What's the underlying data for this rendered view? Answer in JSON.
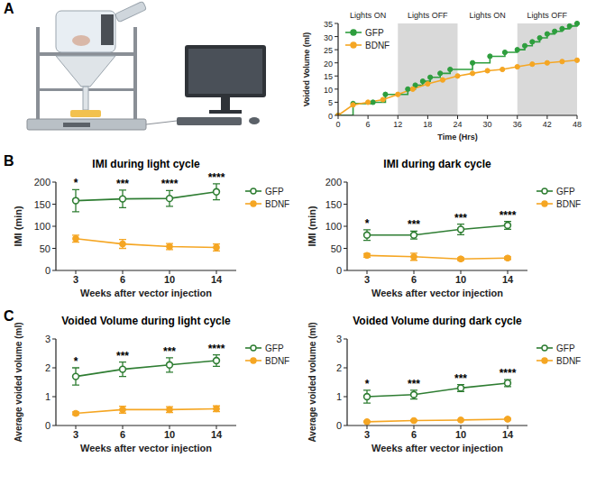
{
  "panel_labels": [
    "A",
    "B",
    "C"
  ],
  "chart_data": [
    {
      "type": "line",
      "x_label": "Time (Hrs)",
      "y_label": "Voided Volume (ml)",
      "xlim": [
        0,
        48
      ],
      "xticks": [
        0,
        6,
        12,
        18,
        24,
        30,
        36,
        42,
        48
      ],
      "ylim": [
        0,
        35
      ],
      "yticks": [
        0,
        5,
        10,
        15,
        20,
        25,
        30,
        35
      ],
      "grid": false,
      "legend": "upper left",
      "shaded": [
        [
          12,
          24
        ],
        [
          36,
          48
        ]
      ],
      "annotations": [
        {
          "text": "Lights ON",
          "x0": 0,
          "x1": 12
        },
        {
          "text": "Lights OFF",
          "x0": 12,
          "x1": 24
        },
        {
          "text": "Lights ON",
          "x0": 24,
          "x1": 36
        },
        {
          "text": "Lights OFF",
          "x0": 36,
          "x1": 48
        }
      ],
      "series": [
        {
          "name": "GFP",
          "color": "#2e9e3e",
          "line_style": "step",
          "marker": "circle",
          "x": [
            0,
            3,
            7,
            9.5,
            14,
            15.5,
            17,
            18.5,
            20.5,
            22.5,
            27,
            30.5,
            33.5,
            36,
            37.5,
            39,
            40.5,
            42,
            43.5,
            45,
            46.5,
            48
          ],
          "values": [
            0,
            4.5,
            5,
            8,
            10,
            11.5,
            13,
            14.5,
            16,
            17.5,
            20,
            22.5,
            24,
            25,
            26.5,
            28,
            29.5,
            31,
            32,
            33,
            34,
            35
          ]
        },
        {
          "name": "BDNF",
          "color": "#f5a623",
          "line_style": "solid",
          "marker": "circle",
          "x": [
            0,
            3,
            6,
            9,
            12,
            15,
            18,
            21,
            24,
            27,
            30,
            33,
            36,
            39,
            42,
            45,
            48
          ],
          "values": [
            0,
            4,
            5,
            6,
            8,
            10,
            12,
            13.5,
            15,
            16,
            17,
            17.5,
            18.5,
            19.5,
            20,
            20.5,
            21
          ]
        }
      ]
    },
    {
      "type": "line",
      "title": "IMI during light cycle",
      "x_label": "Weeks after vector injection",
      "y_label": "IMI (min)",
      "categories": [
        "3",
        "6",
        "10",
        "14"
      ],
      "ylim": [
        0,
        200
      ],
      "yticks": [
        0,
        50,
        100,
        150,
        200
      ],
      "grid": false,
      "legend": "right",
      "annotations": [
        "*",
        "***",
        "****",
        "****"
      ],
      "series": [
        {
          "name": "GFP",
          "color": "#2e7d32",
          "marker": "open-circle",
          "line_style": "solid",
          "values": [
            158,
            162,
            163,
            178
          ],
          "errors": [
            25,
            20,
            18,
            18
          ]
        },
        {
          "name": "BDNF",
          "color": "#f5a623",
          "marker": "circle",
          "line_style": "solid",
          "values": [
            72,
            60,
            54,
            52
          ],
          "errors": [
            8,
            10,
            7,
            8
          ]
        }
      ]
    },
    {
      "type": "line",
      "title": "IMI during dark cycle",
      "x_label": "Weeks after vector injection",
      "y_label": "IMI (min)",
      "categories": [
        "3",
        "6",
        "10",
        "14"
      ],
      "ylim": [
        0,
        200
      ],
      "yticks": [
        0,
        50,
        100,
        150,
        200
      ],
      "grid": false,
      "legend": "right",
      "annotations": [
        "*",
        "***",
        "***",
        "****"
      ],
      "series": [
        {
          "name": "GFP",
          "color": "#2e7d32",
          "marker": "open-circle",
          "line_style": "solid",
          "values": [
            80,
            80,
            93,
            102
          ],
          "errors": [
            12,
            9,
            12,
            9
          ]
        },
        {
          "name": "BDNF",
          "color": "#f5a623",
          "marker": "circle",
          "line_style": "solid",
          "values": [
            34,
            31,
            26,
            28
          ],
          "errors": [
            4,
            8,
            3,
            3
          ]
        }
      ]
    },
    {
      "type": "line",
      "title": "Voided Volume during light cycle",
      "x_label": "Weeks after vector injection",
      "y_label": "Average voided volume (ml)",
      "categories": [
        "3",
        "6",
        "10",
        "14"
      ],
      "ylim": [
        0,
        3
      ],
      "yticks": [
        0,
        1,
        2,
        3
      ],
      "grid": false,
      "legend": "right",
      "annotations": [
        "*",
        "***",
        "***",
        "****"
      ],
      "series": [
        {
          "name": "GFP",
          "color": "#2e7d32",
          "marker": "open-circle",
          "line_style": "solid",
          "values": [
            1.7,
            1.95,
            2.1,
            2.25
          ],
          "errors": [
            0.3,
            0.25,
            0.25,
            0.2
          ]
        },
        {
          "name": "BDNF",
          "color": "#f5a623",
          "marker": "circle",
          "line_style": "solid",
          "values": [
            0.42,
            0.55,
            0.55,
            0.58
          ],
          "errors": [
            0.05,
            0.12,
            0.1,
            0.1
          ]
        }
      ]
    },
    {
      "type": "line",
      "title": "Voided Volume during dark cycle",
      "x_label": "Weeks after vector injection",
      "y_label": "Average voided volume (ml)",
      "categories": [
        "3",
        "6",
        "10",
        "14"
      ],
      "ylim": [
        0,
        3
      ],
      "yticks": [
        0,
        1,
        2,
        3
      ],
      "grid": false,
      "legend": "right",
      "annotations": [
        "*",
        "***",
        "***",
        "****"
      ],
      "series": [
        {
          "name": "GFP",
          "color": "#2e7d32",
          "marker": "open-circle",
          "line_style": "solid",
          "values": [
            1.0,
            1.07,
            1.3,
            1.47
          ],
          "errors": [
            0.22,
            0.15,
            0.12,
            0.12
          ]
        },
        {
          "name": "BDNF",
          "color": "#f5a623",
          "marker": "circle",
          "line_style": "solid",
          "values": [
            0.13,
            0.17,
            0.19,
            0.22
          ],
          "errors": [
            0.02,
            0.02,
            0.02,
            0.03
          ]
        }
      ]
    }
  ]
}
